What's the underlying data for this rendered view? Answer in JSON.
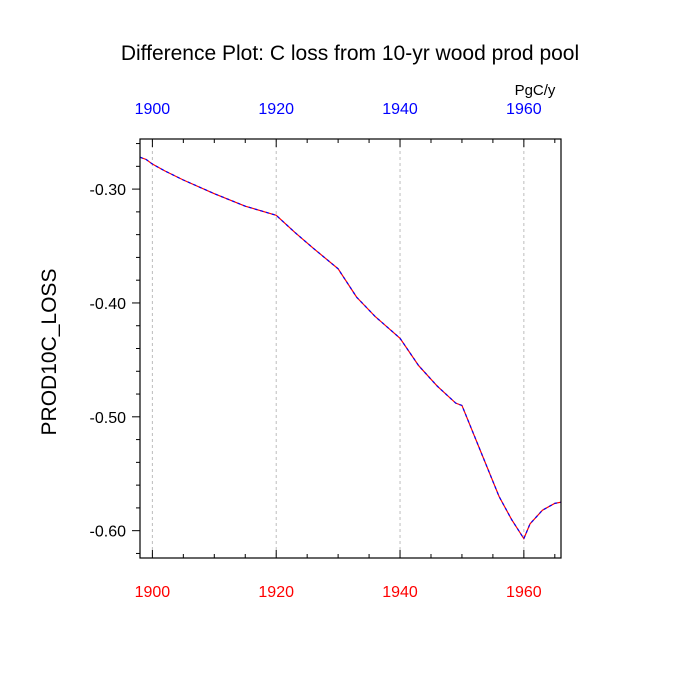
{
  "chart_data": {
    "type": "line",
    "title": "Difference Plot: C loss from 10-yr wood prod pool",
    "units_label": "PgC/y",
    "xlabel": "",
    "ylabel": "PROD10C_LOSS",
    "xlim": [
      1898,
      1966
    ],
    "ylim": [
      -0.624,
      -0.256
    ],
    "x_ticks": [
      1900,
      1920,
      1940,
      1960
    ],
    "x_tick_labels": [
      "1900",
      "1920",
      "1940",
      "1960"
    ],
    "y_ticks": [
      -0.3,
      -0.4,
      -0.5,
      -0.6
    ],
    "y_tick_labels": [
      "-0.30",
      "-0.40",
      "-0.50",
      "-0.60"
    ],
    "grid": "vertical dashed at major x ticks",
    "colors": {
      "bottom_axis_labels": "#ff0000",
      "top_axis_labels": "#0000ff",
      "series_a": "#ff0000",
      "series_b": "#0000ff"
    },
    "series": [
      {
        "x": [
          1898,
          1899,
          1900,
          1902,
          1905,
          1910,
          1915,
          1920,
          1923,
          1926,
          1930,
          1933,
          1936,
          1940,
          1943,
          1946,
          1949,
          1950,
          1953,
          1956,
          1958,
          1960,
          1961,
          1963,
          1965,
          1966
        ],
        "values": [
          -0.272,
          -0.274,
          -0.278,
          -0.284,
          -0.292,
          -0.304,
          -0.315,
          -0.323,
          -0.338,
          -0.352,
          -0.37,
          -0.395,
          -0.412,
          -0.431,
          -0.455,
          -0.473,
          -0.488,
          -0.49,
          -0.53,
          -0.57,
          -0.59,
          -0.607,
          -0.594,
          -0.582,
          -0.576,
          -0.575
        ]
      }
    ]
  }
}
